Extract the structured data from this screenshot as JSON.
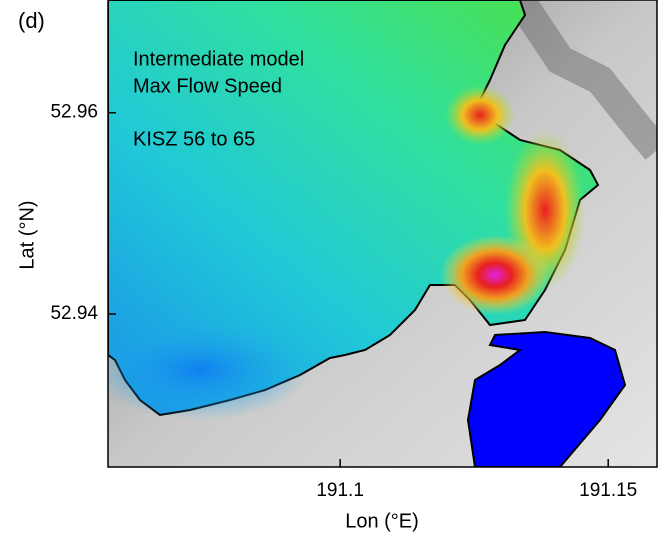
{
  "chart_data": {
    "type": "map",
    "panel_label": "(d)",
    "annotations": [
      "Intermediate model",
      "Max Flow Speed",
      "KISZ 56 to 65"
    ],
    "xlabel": "Lon (°E)",
    "ylabel": "Lat (°N)",
    "xlim": [
      191.0567,
      191.1591
    ],
    "xticks": [
      191.1,
      191.15
    ],
    "ylim": [
      52.9248,
      52.9712
    ],
    "yticks": [
      52.96,
      52.94
    ]
  }
}
